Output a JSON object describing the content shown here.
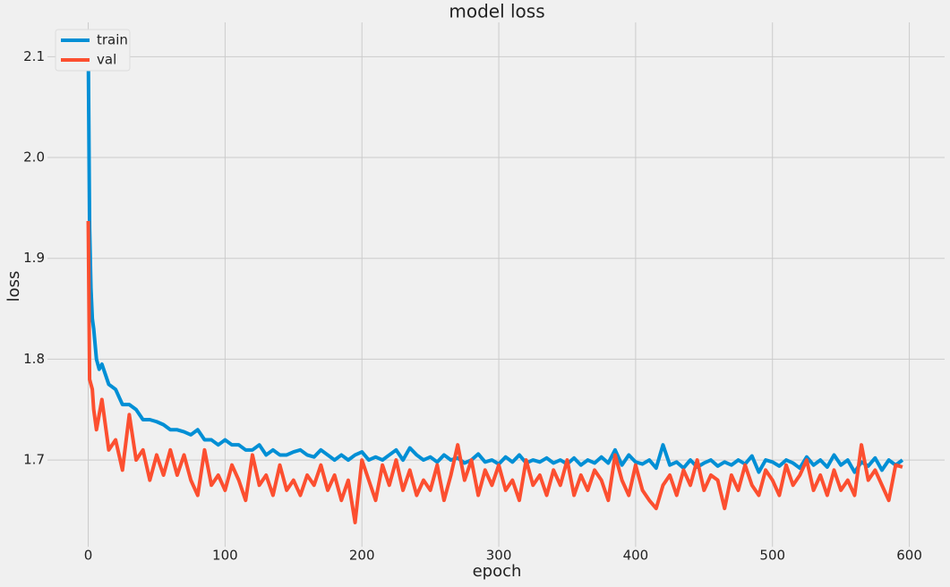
{
  "chart_data": {
    "type": "line",
    "title": "model loss",
    "xlabel": "epoch",
    "ylabel": "loss",
    "x": [
      0,
      1,
      2,
      3,
      4,
      6,
      8,
      10,
      15,
      20,
      25,
      30,
      35,
      40,
      45,
      50,
      55,
      60,
      65,
      70,
      75,
      80,
      85,
      90,
      95,
      100,
      105,
      110,
      115,
      120,
      125,
      130,
      135,
      140,
      145,
      150,
      155,
      160,
      165,
      170,
      175,
      180,
      185,
      190,
      195,
      200,
      205,
      210,
      215,
      220,
      225,
      230,
      235,
      240,
      245,
      250,
      255,
      260,
      265,
      270,
      275,
      280,
      285,
      290,
      295,
      300,
      305,
      310,
      315,
      320,
      325,
      330,
      335,
      340,
      345,
      350,
      355,
      360,
      365,
      370,
      375,
      380,
      385,
      390,
      395,
      400,
      405,
      410,
      415,
      420,
      425,
      430,
      435,
      440,
      445,
      450,
      455,
      460,
      465,
      470,
      475,
      480,
      485,
      490,
      495,
      500,
      505,
      510,
      515,
      520,
      525,
      530,
      535,
      540,
      545,
      550,
      555,
      560,
      565,
      570,
      575,
      580,
      585,
      590,
      595
    ],
    "series": [
      {
        "name": "train",
        "color": "#008fd5",
        "values": [
          2.11,
          1.93,
          1.87,
          1.84,
          1.83,
          1.8,
          1.79,
          1.795,
          1.775,
          1.77,
          1.755,
          1.755,
          1.75,
          1.74,
          1.74,
          1.738,
          1.735,
          1.73,
          1.73,
          1.728,
          1.725,
          1.73,
          1.72,
          1.72,
          1.715,
          1.72,
          1.715,
          1.715,
          1.71,
          1.71,
          1.715,
          1.705,
          1.71,
          1.705,
          1.705,
          1.708,
          1.71,
          1.705,
          1.703,
          1.71,
          1.705,
          1.7,
          1.705,
          1.7,
          1.705,
          1.708,
          1.7,
          1.703,
          1.7,
          1.705,
          1.71,
          1.7,
          1.712,
          1.705,
          1.7,
          1.703,
          1.698,
          1.705,
          1.7,
          1.702,
          1.697,
          1.7,
          1.706,
          1.698,
          1.7,
          1.696,
          1.703,
          1.698,
          1.705,
          1.697,
          1.7,
          1.698,
          1.702,
          1.697,
          1.7,
          1.696,
          1.702,
          1.695,
          1.7,
          1.697,
          1.703,
          1.697,
          1.71,
          1.695,
          1.705,
          1.698,
          1.696,
          1.7,
          1.692,
          1.715,
          1.695,
          1.698,
          1.692,
          1.7,
          1.693,
          1.697,
          1.7,
          1.694,
          1.698,
          1.695,
          1.7,
          1.696,
          1.704,
          1.688,
          1.7,
          1.698,
          1.694,
          1.7,
          1.697,
          1.692,
          1.703,
          1.695,
          1.7,
          1.693,
          1.705,
          1.695,
          1.7,
          1.688,
          1.698,
          1.694,
          1.702,
          1.69,
          1.7,
          1.695,
          1.7
        ]
      },
      {
        "name": "val",
        "color": "#fc4f30",
        "values": [
          1.937,
          1.78,
          1.775,
          1.77,
          1.75,
          1.73,
          1.745,
          1.76,
          1.71,
          1.72,
          1.69,
          1.745,
          1.7,
          1.71,
          1.68,
          1.705,
          1.685,
          1.71,
          1.685,
          1.705,
          1.68,
          1.665,
          1.71,
          1.675,
          1.685,
          1.67,
          1.695,
          1.68,
          1.66,
          1.705,
          1.675,
          1.685,
          1.665,
          1.695,
          1.67,
          1.68,
          1.665,
          1.685,
          1.675,
          1.695,
          1.67,
          1.685,
          1.66,
          1.68,
          1.638,
          1.7,
          1.68,
          1.66,
          1.695,
          1.675,
          1.7,
          1.67,
          1.69,
          1.665,
          1.68,
          1.67,
          1.695,
          1.66,
          1.685,
          1.715,
          1.68,
          1.7,
          1.665,
          1.69,
          1.675,
          1.695,
          1.67,
          1.68,
          1.66,
          1.7,
          1.675,
          1.685,
          1.665,
          1.69,
          1.675,
          1.7,
          1.665,
          1.685,
          1.67,
          1.69,
          1.68,
          1.66,
          1.705,
          1.68,
          1.665,
          1.695,
          1.67,
          1.66,
          1.652,
          1.675,
          1.685,
          1.665,
          1.69,
          1.675,
          1.7,
          1.67,
          1.685,
          1.68,
          1.652,
          1.685,
          1.67,
          1.695,
          1.675,
          1.665,
          1.69,
          1.68,
          1.665,
          1.695,
          1.675,
          1.685,
          1.7,
          1.67,
          1.685,
          1.665,
          1.69,
          1.67,
          1.68,
          1.665,
          1.715,
          1.68,
          1.69,
          1.675,
          1.66,
          1.695,
          1.693
        ]
      }
    ],
    "xlim": [
      -29.8,
      625.8
    ],
    "xticks": [
      0,
      100,
      200,
      300,
      400,
      500,
      600
    ],
    "ylim": [
      1.614,
      2.134
    ],
    "yticks": [
      1.7,
      1.8,
      1.9,
      {
        "value": 2,
        "label": "2.0"
      },
      2.1
    ],
    "grid": true,
    "legend": "upper left"
  }
}
